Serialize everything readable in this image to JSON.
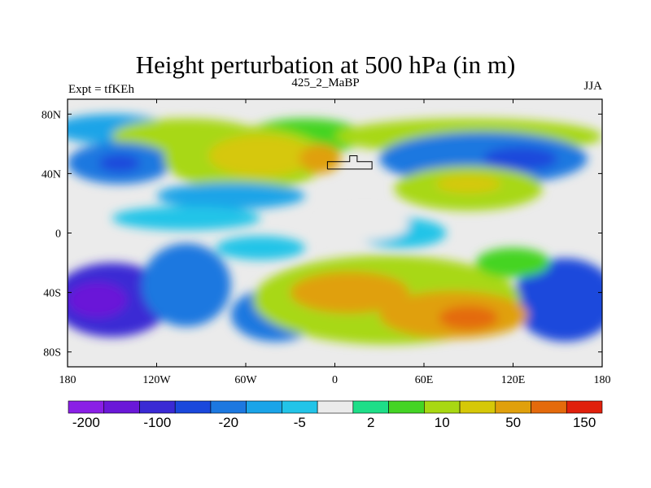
{
  "title": "Height perturbation at 500 hPa (in m)",
  "subtitle_left": "Expt = tfKEh",
  "subtitle_center": "425_2_MaBP",
  "subtitle_right": "JJA",
  "map": {
    "projection": "cylindrical-equidistant",
    "lon_range": [
      -180,
      180
    ],
    "lat_range": [
      -90,
      90
    ],
    "xticks": [
      {
        "lon": -180,
        "label": "180"
      },
      {
        "lon": -120,
        "label": "120W"
      },
      {
        "lon": -60,
        "label": "60W"
      },
      {
        "lon": 0,
        "label": "0"
      },
      {
        "lon": 60,
        "label": "60E"
      },
      {
        "lon": 120,
        "label": "120E"
      },
      {
        "lon": 180,
        "label": "180"
      }
    ],
    "yticks": [
      {
        "lat": 80,
        "label": "80N"
      },
      {
        "lat": 40,
        "label": "40N"
      },
      {
        "lat": 0,
        "label": "0"
      },
      {
        "lat": -40,
        "label": "40S"
      },
      {
        "lat": -80,
        "label": "80S"
      }
    ],
    "background_color": "#ebebeb"
  },
  "colorbar": {
    "colors": [
      "#8a1fe6",
      "#6a18d8",
      "#3a2ad4",
      "#1a48dc",
      "#1c78e0",
      "#1aa4e8",
      "#22c4e8",
      "#ebebeb",
      "#1ede88",
      "#44d424",
      "#a8d812",
      "#d6c808",
      "#e0a00c",
      "#e46a0c",
      "#e0200c"
    ],
    "labels": [
      {
        "index": 1,
        "text": "-200"
      },
      {
        "index": 3,
        "text": "-100"
      },
      {
        "index": 5,
        "text": "-20"
      },
      {
        "index": 7,
        "text": "-5"
      },
      {
        "index": 9,
        "text": "2"
      },
      {
        "index": 11,
        "text": "10"
      },
      {
        "index": 13,
        "text": "50"
      },
      {
        "index": 15,
        "text": "150"
      }
    ]
  },
  "fields": {
    "blobs": [
      {
        "lon": -150,
        "lat": 70,
        "rx": 40,
        "ry": 10,
        "color": "#1aa4e8"
      },
      {
        "lon": -100,
        "lat": 65,
        "rx": 50,
        "ry": 12,
        "color": "#a8d812"
      },
      {
        "lon": -20,
        "lat": 65,
        "rx": 40,
        "ry": 12,
        "color": "#44d424"
      },
      {
        "lon": 90,
        "lat": 65,
        "rx": 90,
        "ry": 12,
        "color": "#a8d812"
      },
      {
        "lon": -145,
        "lat": 47,
        "rx": 35,
        "ry": 14,
        "color": "#1c78e0"
      },
      {
        "lon": -145,
        "lat": 47,
        "rx": 14,
        "ry": 6,
        "color": "#1a48dc"
      },
      {
        "lon": -60,
        "lat": 50,
        "rx": 55,
        "ry": 22,
        "color": "#a8d812"
      },
      {
        "lon": -50,
        "lat": 52,
        "rx": 35,
        "ry": 14,
        "color": "#d6c808"
      },
      {
        "lon": -10,
        "lat": 50,
        "rx": 14,
        "ry": 10,
        "color": "#e0a00c"
      },
      {
        "lon": -70,
        "lat": 25,
        "rx": 50,
        "ry": 9,
        "color": "#1aa4e8"
      },
      {
        "lon": -100,
        "lat": 10,
        "rx": 50,
        "ry": 8,
        "color": "#22c4e8"
      },
      {
        "lon": 100,
        "lat": 50,
        "rx": 70,
        "ry": 18,
        "color": "#1c78e0"
      },
      {
        "lon": 125,
        "lat": 50,
        "rx": 25,
        "ry": 8,
        "color": "#1a48dc"
      },
      {
        "lon": 90,
        "lat": 30,
        "rx": 50,
        "ry": 15,
        "color": "#a8d812"
      },
      {
        "lon": 90,
        "lat": 33,
        "rx": 22,
        "ry": 6,
        "color": "#d6c808"
      },
      {
        "lon": 45,
        "lat": 0,
        "rx": 30,
        "ry": 10,
        "color": "#22c4e8"
      },
      {
        "lon": 155,
        "lat": -45,
        "rx": 35,
        "ry": 28,
        "color": "#1a48dc"
      },
      {
        "lon": -150,
        "lat": -45,
        "rx": 40,
        "ry": 25,
        "color": "#3a2ad4"
      },
      {
        "lon": -160,
        "lat": -45,
        "rx": 20,
        "ry": 12,
        "color": "#6a18d8"
      },
      {
        "lon": -100,
        "lat": -35,
        "rx": 30,
        "ry": 28,
        "color": "#1c78e0"
      },
      {
        "lon": -40,
        "lat": -55,
        "rx": 30,
        "ry": 18,
        "color": "#1c78e0"
      },
      {
        "lon": -50,
        "lat": -10,
        "rx": 30,
        "ry": 8,
        "color": "#22c4e8"
      },
      {
        "lon": 35,
        "lat": -45,
        "rx": 90,
        "ry": 30,
        "color": "#a8d812"
      },
      {
        "lon": 10,
        "lat": -40,
        "rx": 40,
        "ry": 14,
        "color": "#e0a00c"
      },
      {
        "lon": 80,
        "lat": -55,
        "rx": 50,
        "ry": 16,
        "color": "#e0a00c"
      },
      {
        "lon": 90,
        "lat": -57,
        "rx": 20,
        "ry": 8,
        "color": "#e46a0c"
      },
      {
        "lon": 120,
        "lat": -20,
        "rx": 25,
        "ry": 10,
        "color": "#44d424"
      },
      {
        "lon": 20,
        "lat": 5,
        "rx": 30,
        "ry": 10,
        "color": "#ebebeb"
      }
    ],
    "coastline": [
      [
        -5,
        43
      ],
      [
        -5,
        48
      ],
      [
        10,
        48
      ],
      [
        10,
        52
      ],
      [
        15,
        52
      ],
      [
        15,
        48
      ],
      [
        25,
        48
      ],
      [
        25,
        43
      ],
      [
        15,
        43
      ],
      [
        5,
        43
      ],
      [
        -5,
        43
      ]
    ]
  }
}
